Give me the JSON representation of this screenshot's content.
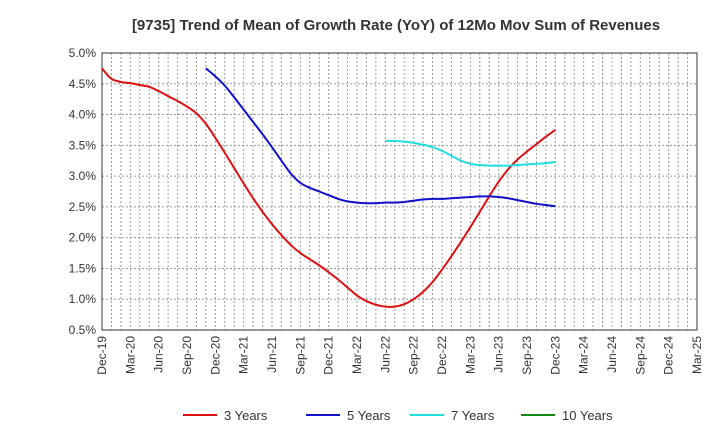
{
  "chart_data": {
    "type": "line",
    "title": "[9735]  Trend of Mean of Growth Rate (YoY) of 12Mo Mov Sum of Revenues",
    "xlabel": "",
    "ylabel": "",
    "x_ticks": [
      "Dec-19",
      "Mar-20",
      "Jun-20",
      "Sep-20",
      "Dec-20",
      "Mar-21",
      "Jun-21",
      "Sep-21",
      "Dec-21",
      "Mar-22",
      "Jun-22",
      "Sep-22",
      "Dec-22",
      "Mar-23",
      "Jun-23",
      "Sep-23",
      "Dec-23",
      "Mar-24",
      "Jun-24",
      "Sep-24",
      "Dec-24",
      "Mar-25"
    ],
    "y_ticks": [
      "0.5%",
      "1.0%",
      "1.5%",
      "2.0%",
      "2.5%",
      "3.0%",
      "3.5%",
      "4.0%",
      "4.5%",
      "5.0%"
    ],
    "ylim": [
      0.5,
      5.0
    ],
    "series": [
      {
        "name": "3 Years",
        "color": "#dd1111",
        "points": [
          {
            "x": 0,
            "y": 4.75
          },
          {
            "x": 1,
            "y": 4.58
          },
          {
            "x": 2,
            "y": 4.53
          },
          {
            "x": 3,
            "y": 4.51
          },
          {
            "x": 4,
            "y": 4.48
          },
          {
            "x": 5,
            "y": 4.45
          },
          {
            "x": 6,
            "y": 4.38
          },
          {
            "x": 7,
            "y": 4.3
          },
          {
            "x": 8,
            "y": 4.22
          },
          {
            "x": 9,
            "y": 4.13
          },
          {
            "x": 10,
            "y": 4.02
          },
          {
            "x": 11,
            "y": 3.85
          },
          {
            "x": 12,
            "y": 3.62
          },
          {
            "x": 13,
            "y": 3.38
          },
          {
            "x": 14,
            "y": 3.13
          },
          {
            "x": 15,
            "y": 2.88
          },
          {
            "x": 16,
            "y": 2.64
          },
          {
            "x": 17,
            "y": 2.42
          },
          {
            "x": 18,
            "y": 2.22
          },
          {
            "x": 19,
            "y": 2.04
          },
          {
            "x": 20,
            "y": 1.88
          },
          {
            "x": 21,
            "y": 1.75
          },
          {
            "x": 22,
            "y": 1.65
          },
          {
            "x": 23,
            "y": 1.55
          },
          {
            "x": 24,
            "y": 1.44
          },
          {
            "x": 25,
            "y": 1.32
          },
          {
            "x": 26,
            "y": 1.19
          },
          {
            "x": 27,
            "y": 1.06
          },
          {
            "x": 28,
            "y": 0.97
          },
          {
            "x": 29,
            "y": 0.91
          },
          {
            "x": 30,
            "y": 0.88
          },
          {
            "x": 31,
            "y": 0.88
          },
          {
            "x": 32,
            "y": 0.92
          },
          {
            "x": 33,
            "y": 1.0
          },
          {
            "x": 34,
            "y": 1.12
          },
          {
            "x": 35,
            "y": 1.28
          },
          {
            "x": 36,
            "y": 1.48
          },
          {
            "x": 37,
            "y": 1.7
          },
          {
            "x": 38,
            "y": 1.93
          },
          {
            "x": 39,
            "y": 2.17
          },
          {
            "x": 40,
            "y": 2.42
          },
          {
            "x": 41,
            "y": 2.67
          },
          {
            "x": 42,
            "y": 2.91
          },
          {
            "x": 43,
            "y": 3.11
          },
          {
            "x": 44,
            "y": 3.27
          },
          {
            "x": 45,
            "y": 3.4
          },
          {
            "x": 46,
            "y": 3.52
          },
          {
            "x": 47,
            "y": 3.64
          },
          {
            "x": 48,
            "y": 3.75
          }
        ]
      },
      {
        "name": "5 Years",
        "color": "#1111cc",
        "points": [
          {
            "x": 11,
            "y": 4.75
          },
          {
            "x": 12,
            "y": 4.62
          },
          {
            "x": 13,
            "y": 4.47
          },
          {
            "x": 14,
            "y": 4.28
          },
          {
            "x": 15,
            "y": 4.08
          },
          {
            "x": 16,
            "y": 3.88
          },
          {
            "x": 17,
            "y": 3.68
          },
          {
            "x": 18,
            "y": 3.47
          },
          {
            "x": 19,
            "y": 3.25
          },
          {
            "x": 20,
            "y": 3.04
          },
          {
            "x": 21,
            "y": 2.89
          },
          {
            "x": 22,
            "y": 2.81
          },
          {
            "x": 23,
            "y": 2.75
          },
          {
            "x": 24,
            "y": 2.69
          },
          {
            "x": 25,
            "y": 2.63
          },
          {
            "x": 26,
            "y": 2.59
          },
          {
            "x": 27,
            "y": 2.57
          },
          {
            "x": 28,
            "y": 2.56
          },
          {
            "x": 29,
            "y": 2.56
          },
          {
            "x": 30,
            "y": 2.57
          },
          {
            "x": 31,
            "y": 2.57
          },
          {
            "x": 32,
            "y": 2.58
          },
          {
            "x": 33,
            "y": 2.6
          },
          {
            "x": 34,
            "y": 2.62
          },
          {
            "x": 35,
            "y": 2.63
          },
          {
            "x": 36,
            "y": 2.63
          },
          {
            "x": 37,
            "y": 2.64
          },
          {
            "x": 38,
            "y": 2.65
          },
          {
            "x": 39,
            "y": 2.66
          },
          {
            "x": 40,
            "y": 2.67
          },
          {
            "x": 41,
            "y": 2.67
          },
          {
            "x": 42,
            "y": 2.66
          },
          {
            "x": 43,
            "y": 2.64
          },
          {
            "x": 44,
            "y": 2.61
          },
          {
            "x": 45,
            "y": 2.58
          },
          {
            "x": 46,
            "y": 2.55
          },
          {
            "x": 47,
            "y": 2.53
          },
          {
            "x": 48,
            "y": 2.51
          }
        ]
      },
      {
        "name": "7 Years",
        "color": "#22dddd",
        "points": [
          {
            "x": 30,
            "y": 3.57
          },
          {
            "x": 31,
            "y": 3.57
          },
          {
            "x": 32,
            "y": 3.56
          },
          {
            "x": 33,
            "y": 3.54
          },
          {
            "x": 34,
            "y": 3.51
          },
          {
            "x": 35,
            "y": 3.47
          },
          {
            "x": 36,
            "y": 3.41
          },
          {
            "x": 37,
            "y": 3.33
          },
          {
            "x": 38,
            "y": 3.25
          },
          {
            "x": 39,
            "y": 3.2
          },
          {
            "x": 40,
            "y": 3.18
          },
          {
            "x": 41,
            "y": 3.17
          },
          {
            "x": 42,
            "y": 3.17
          },
          {
            "x": 43,
            "y": 3.17
          },
          {
            "x": 44,
            "y": 3.18
          },
          {
            "x": 45,
            "y": 3.19
          },
          {
            "x": 46,
            "y": 3.2
          },
          {
            "x": 47,
            "y": 3.21
          },
          {
            "x": 48,
            "y": 3.23
          }
        ]
      },
      {
        "name": "10 Years",
        "color": "#118811",
        "points": []
      }
    ],
    "x_points_per_tick": 3,
    "legend_position": "bottom-center"
  }
}
